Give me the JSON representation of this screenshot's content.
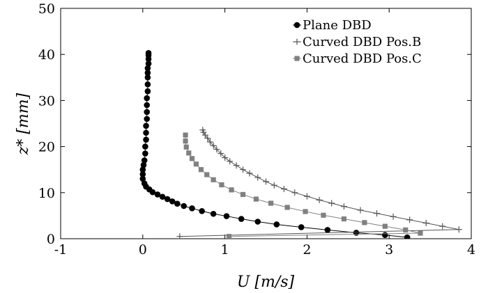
{
  "chart_data": {
    "type": "line",
    "xlabel": "U [m/s]",
    "ylabel": "z* [mm]",
    "xlim": [
      -1,
      4
    ],
    "ylim": [
      0,
      50
    ],
    "xticks": [
      -1,
      0,
      1,
      2,
      3,
      4
    ],
    "yticks": [
      0,
      10,
      20,
      30,
      40,
      50
    ],
    "xtick_labels": [
      "-1",
      "0",
      "1",
      "2",
      "3",
      "4"
    ],
    "ytick_labels": [
      "0",
      "10",
      "20",
      "30",
      "40",
      "50"
    ],
    "grid": false,
    "legend_position": "top-right",
    "series": [
      {
        "name": "Plane DBD",
        "color": "#000000",
        "marker": "circle",
        "x": [
          3.22,
          2.95,
          2.6,
          2.25,
          1.93,
          1.63,
          1.4,
          1.2,
          1.02,
          0.86,
          0.72,
          0.6,
          0.5,
          0.42,
          0.36,
          0.3,
          0.24,
          0.18,
          0.12,
          0.08,
          0.04,
          0.02,
          0.0,
          0.0,
          0.0,
          0.01,
          0.02,
          0.03,
          0.03,
          0.04,
          0.04,
          0.04,
          0.05,
          0.05,
          0.05,
          0.05,
          0.06,
          0.06,
          0.06,
          0.06,
          0.06,
          0.07,
          0.07,
          0.07,
          0.07
        ],
        "y": [
          0.3,
          0.8,
          1.3,
          1.9,
          2.5,
          3.1,
          3.7,
          4.3,
          4.9,
          5.4,
          6.0,
          6.6,
          7.1,
          7.6,
          8.1,
          8.6,
          9.1,
          9.6,
          10.1,
          10.7,
          11.3,
          12.0,
          13.0,
          14.0,
          15.0,
          16.0,
          17.0,
          18.5,
          20.0,
          21.5,
          23.0,
          24.5,
          26.0,
          27.5,
          29.0,
          30.5,
          32.0,
          33.5,
          35.0,
          36.0,
          37.0,
          38.0,
          39.0,
          39.8,
          40.3
        ]
      },
      {
        "name": "Curved DBD Pos.B",
        "color": "#555555",
        "marker": "plus",
        "x": [
          0.45,
          3.85,
          3.65,
          3.45,
          3.25,
          3.05,
          2.85,
          2.65,
          2.45,
          2.3,
          2.15,
          2.0,
          1.85,
          1.72,
          1.6,
          1.5,
          1.4,
          1.3,
          1.22,
          1.14,
          1.06,
          1.0,
          0.95,
          0.9,
          0.86,
          0.82,
          0.79,
          0.76,
          0.74,
          0.73
        ],
        "y": [
          0.5,
          2.0,
          2.7,
          3.4,
          4.1,
          4.8,
          5.5,
          6.2,
          7.0,
          7.7,
          8.4,
          9.2,
          10.0,
          10.8,
          11.6,
          12.4,
          13.3,
          14.2,
          15.0,
          15.9,
          16.8,
          17.6,
          18.5,
          19.4,
          20.2,
          21.0,
          21.8,
          22.5,
          23.1,
          23.6
        ]
      },
      {
        "name": "Curved DBD Pos.C",
        "color": "#808080",
        "marker": "square",
        "x": [
          1.05,
          3.38,
          3.2,
          2.95,
          2.7,
          2.45,
          2.2,
          1.98,
          1.76,
          1.56,
          1.38,
          1.22,
          1.08,
          0.96,
          0.86,
          0.78,
          0.71,
          0.65,
          0.6,
          0.56,
          0.53,
          0.52,
          0.52
        ],
        "y": [
          0.5,
          1.2,
          1.9,
          2.7,
          3.5,
          4.3,
          5.1,
          5.9,
          6.8,
          7.7,
          8.6,
          9.6,
          10.6,
          11.7,
          12.8,
          13.9,
          15.0,
          16.2,
          17.4,
          18.6,
          19.9,
          21.2,
          22.5
        ]
      }
    ]
  }
}
